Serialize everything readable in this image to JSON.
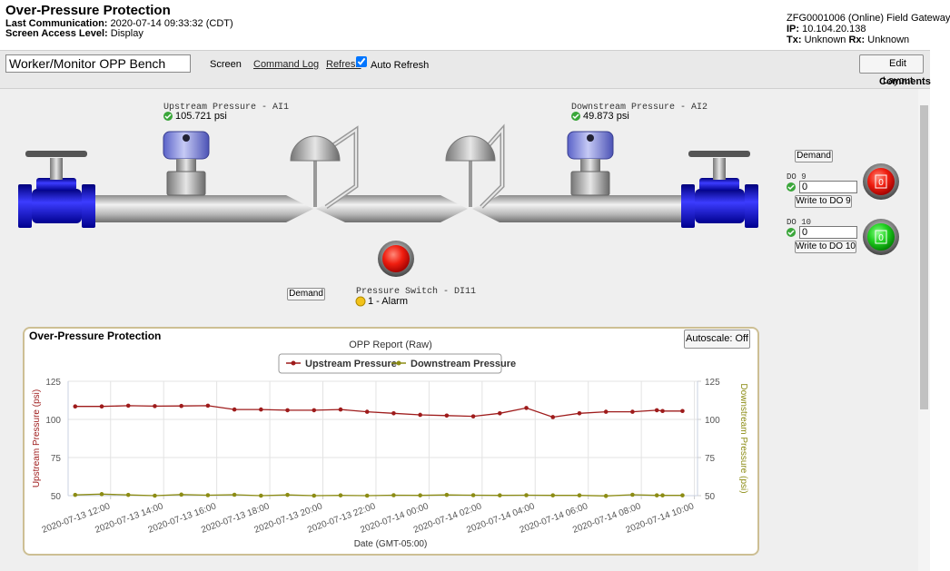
{
  "header": {
    "title": "Over-Pressure Protection",
    "last_communication_label": "Last Communication:",
    "last_communication": "2020-07-14 09:33:32 (CDT)",
    "access_label": "Screen Access Level:",
    "access": "Display",
    "gateway": "ZFG0001006 (Online) Field Gateway",
    "ip_label": "IP:",
    "ip": "10.104.20.138",
    "tx_label": "Tx:",
    "tx": "Unknown",
    "rx_label": "Rx:",
    "rx": "Unknown"
  },
  "toolbar": {
    "screen_select": "Worker/Monitor OPP Bench",
    "screen": "Screen",
    "command_log": "Command Log",
    "refresh": "Refresh",
    "auto_refresh": "Auto Refresh",
    "edit_layout": "Edit Layout",
    "comments": "Comments"
  },
  "schematic": {
    "upstream_label": "Upstream Pressure - AI1",
    "upstream_value": "105.721 psi",
    "downstream_label": "Downstream Pressure - AI2",
    "downstream_value": "49.873 psi",
    "switch_label": "Pressure Switch - DI11",
    "switch_value": "1 - Alarm",
    "demand": "Demand"
  },
  "controls": {
    "demand": "Demand",
    "do9_label": "DO 9",
    "do9_input": "0",
    "do9_write": "Write to DO 9",
    "do9_state": "0",
    "do10_label": "DO 10",
    "do10_input": "0",
    "do10_write": "Write to DO 10",
    "do10_state": "0"
  },
  "panel": {
    "title": "Over-Pressure Protection",
    "autoscale": "Autoscale: Off"
  },
  "chart_data": {
    "type": "line",
    "title": "OPP Report (Raw)",
    "xlabel": "Date (GMT-05:00)",
    "ylabel": "Upstream Pressure (psi)",
    "y2label": "Downstream Pressure (psi)",
    "x": [
      "2020-07-13 10:40",
      "2020-07-13 11:40",
      "2020-07-13 12:40",
      "2020-07-13 13:40",
      "2020-07-13 14:40",
      "2020-07-13 15:40",
      "2020-07-13 16:40",
      "2020-07-13 17:40",
      "2020-07-13 18:40",
      "2020-07-13 19:40",
      "2020-07-13 20:40",
      "2020-07-13 21:40",
      "2020-07-13 22:40",
      "2020-07-13 23:40",
      "2020-07-14 00:40",
      "2020-07-14 01:40",
      "2020-07-14 02:40",
      "2020-07-14 03:40",
      "2020-07-14 04:40",
      "2020-07-14 05:40",
      "2020-07-14 06:40",
      "2020-07-14 07:40",
      "2020-07-14 08:35",
      "2020-07-14 08:48",
      "2020-07-14 09:33"
    ],
    "series": [
      {
        "name": "Upstream Pressure",
        "color": "#9e1b1b",
        "values": [
          108.5,
          108.5,
          109,
          108.7,
          108.8,
          109,
          106.5,
          106.5,
          106,
          106,
          106.5,
          105,
          104,
          103,
          102.5,
          102,
          104,
          107.5,
          101.5,
          104,
          105,
          105,
          106,
          105.5,
          105.5
        ]
      },
      {
        "name": "Downstream Pressure",
        "color": "#8c8c14",
        "axis": "y2",
        "values": [
          50.5,
          51,
          50.5,
          50,
          50.7,
          50.3,
          50.6,
          50,
          50.5,
          50,
          50.2,
          50,
          50.3,
          50.2,
          50.5,
          50.3,
          50.2,
          50.3,
          50.2,
          50.2,
          49.8,
          50.6,
          50.2,
          50.2,
          50.2
        ]
      }
    ],
    "xlim": [
      "2020-07-13 10:24",
      "2020-07-14 10:07"
    ],
    "xticks": [
      "2020-07-13 12:00",
      "2020-07-13 14:00",
      "2020-07-13 16:00",
      "2020-07-13 18:00",
      "2020-07-13 20:00",
      "2020-07-13 22:00",
      "2020-07-14 00:00",
      "2020-07-14 02:00",
      "2020-07-14 04:00",
      "2020-07-14 06:00",
      "2020-07-14 08:00",
      "2020-07-14 10:00"
    ],
    "ylim": [
      50,
      125
    ],
    "yticks": [
      50,
      75,
      100,
      125
    ],
    "y2lim": [
      50,
      125
    ],
    "y2ticks": [
      50,
      75,
      100,
      125
    ],
    "grid": true,
    "legend": "top"
  }
}
